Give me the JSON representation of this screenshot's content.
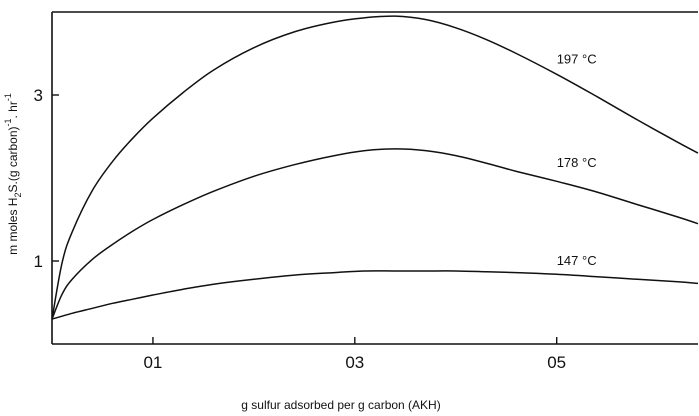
{
  "chart_data": {
    "type": "line",
    "title": "",
    "xlabel": "g sulfur adsorbed  per g carbon (AKH)",
    "ylabel_parts": [
      "m moles H",
      "2",
      "S.(g carbon)",
      "-1",
      ". hr",
      "-1"
    ],
    "xlim": [
      0,
      0.64
    ],
    "ylim": [
      0,
      4.0
    ],
    "x_ticks": [
      {
        "value": 0.1,
        "label": "01"
      },
      {
        "value": 0.3,
        "label": "03"
      },
      {
        "value": 0.5,
        "label": "05"
      }
    ],
    "y_ticks": [
      {
        "value": 1,
        "label": "1"
      },
      {
        "value": 3,
        "label": "3"
      }
    ],
    "grid": false,
    "series": [
      {
        "name": "197 °C",
        "label_at": [
          0.5,
          3.38
        ],
        "x": [
          0,
          0.01,
          0.02,
          0.04,
          0.06,
          0.08,
          0.1,
          0.13,
          0.16,
          0.2,
          0.24,
          0.28,
          0.31,
          0.34,
          0.37,
          0.4,
          0.43,
          0.46,
          0.5,
          0.54,
          0.58,
          0.62,
          0.64
        ],
        "values": [
          0.3,
          0.98,
          1.35,
          1.85,
          2.2,
          2.48,
          2.72,
          3.03,
          3.3,
          3.57,
          3.76,
          3.88,
          3.93,
          3.95,
          3.91,
          3.81,
          3.67,
          3.5,
          3.25,
          2.98,
          2.7,
          2.43,
          2.3
        ]
      },
      {
        "name": "178 °C",
        "label_at": [
          0.5,
          2.13
        ],
        "x": [
          0,
          0.01,
          0.02,
          0.04,
          0.06,
          0.08,
          0.1,
          0.13,
          0.16,
          0.2,
          0.24,
          0.28,
          0.31,
          0.34,
          0.37,
          0.4,
          0.43,
          0.46,
          0.5,
          0.54,
          0.58,
          0.62,
          0.64
        ],
        "values": [
          0.3,
          0.6,
          0.78,
          1.02,
          1.2,
          1.36,
          1.5,
          1.68,
          1.84,
          2.02,
          2.16,
          2.27,
          2.33,
          2.35,
          2.33,
          2.27,
          2.18,
          2.08,
          1.96,
          1.83,
          1.68,
          1.53,
          1.45
        ]
      },
      {
        "name": "147 °C",
        "label_at": [
          0.5,
          0.95
        ],
        "x": [
          0,
          0.02,
          0.04,
          0.06,
          0.08,
          0.1,
          0.13,
          0.16,
          0.2,
          0.24,
          0.28,
          0.31,
          0.34,
          0.37,
          0.4,
          0.43,
          0.46,
          0.5,
          0.54,
          0.58,
          0.62,
          0.64
        ],
        "values": [
          0.3,
          0.37,
          0.43,
          0.49,
          0.54,
          0.59,
          0.66,
          0.72,
          0.78,
          0.83,
          0.86,
          0.88,
          0.88,
          0.88,
          0.88,
          0.87,
          0.86,
          0.84,
          0.81,
          0.78,
          0.75,
          0.73
        ]
      }
    ]
  }
}
